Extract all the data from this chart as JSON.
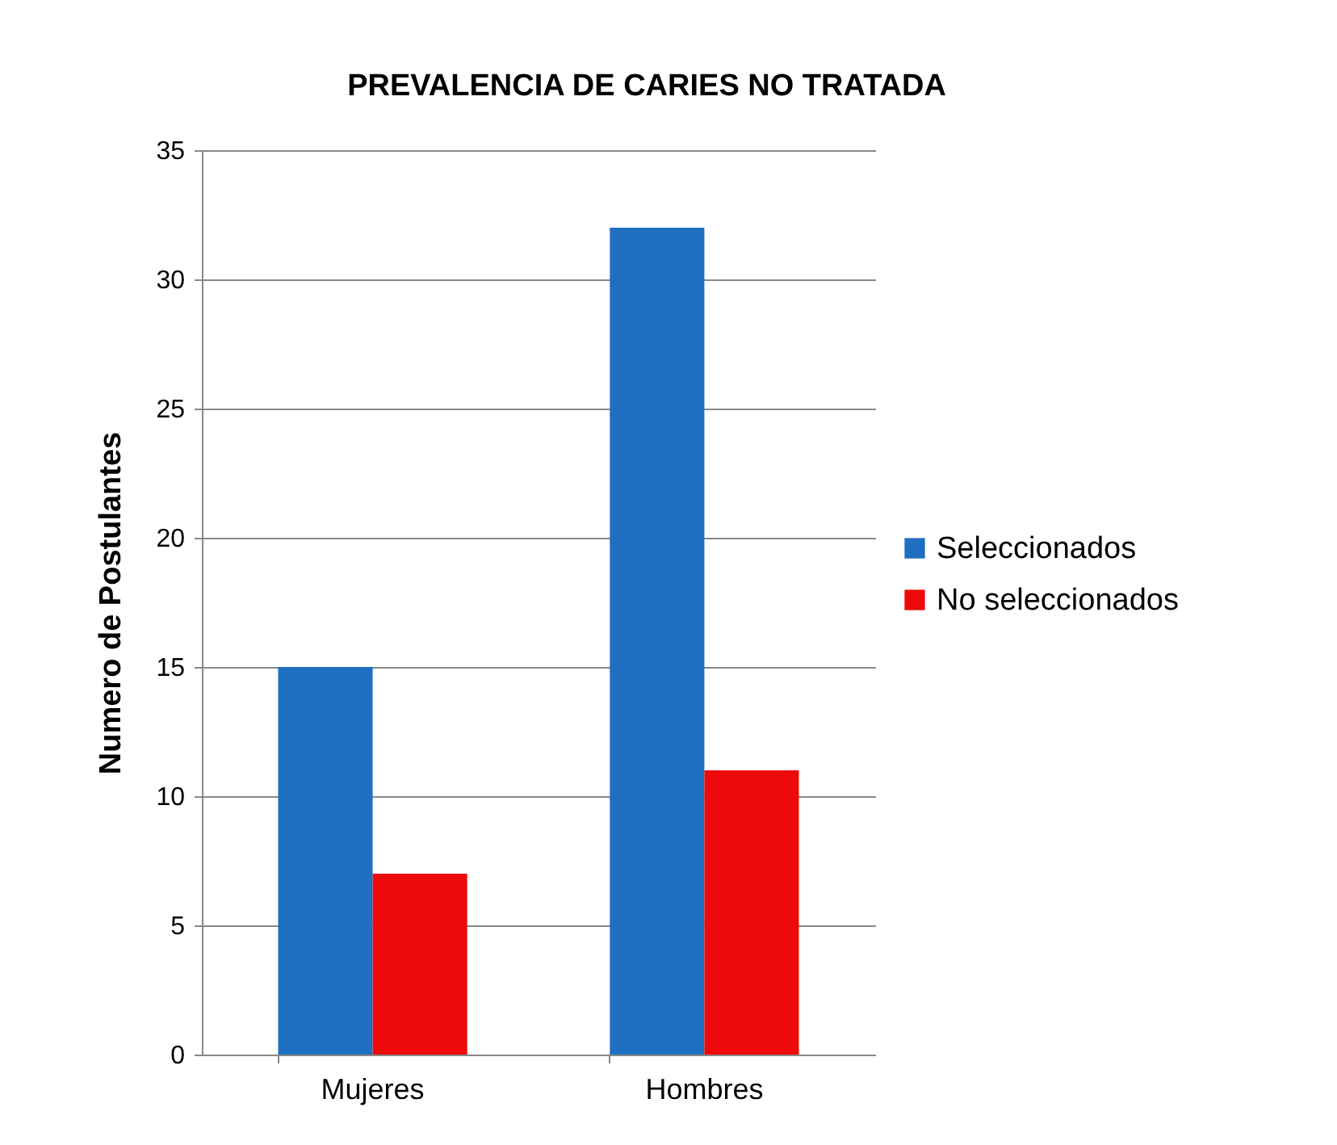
{
  "chart_data": {
    "type": "bar",
    "title": "PREVALENCIA DE CARIES NO TRATADA",
    "ylabel": "Numero de Postulantes",
    "categories": [
      "Mujeres",
      "Hombres"
    ],
    "series": [
      {
        "name": "Seleccionados",
        "color": "#1f6fc1",
        "values": [
          15,
          32
        ]
      },
      {
        "name": "No seleccionados",
        "color": "#ee0a0a",
        "values": [
          7,
          11
        ]
      }
    ],
    "ylim": [
      0,
      35
    ],
    "yticks": [
      0,
      5,
      10,
      15,
      20,
      25,
      30,
      35
    ],
    "grid": "y",
    "legend": "right"
  }
}
